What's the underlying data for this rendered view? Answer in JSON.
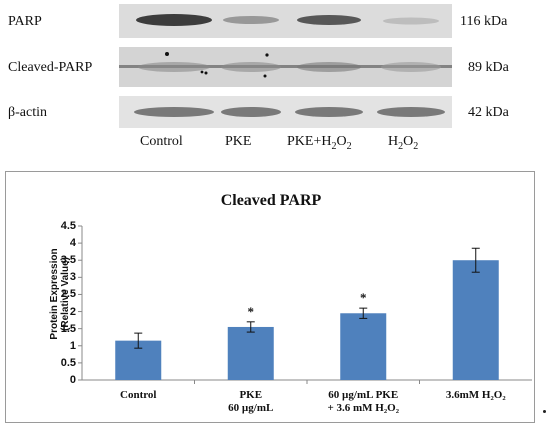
{
  "blot": {
    "rows": [
      {
        "label": "PARP",
        "kda": "116 kDa"
      },
      {
        "label": "Cleaved-PARP",
        "kda": "89 kDa"
      },
      {
        "label": "β-actin",
        "kda": "42 kDa"
      }
    ],
    "lanes": [
      {
        "text": "Control",
        "sub": ""
      },
      {
        "text": "PKE",
        "sub": ""
      },
      {
        "text": "PKE+H",
        "sub": "2",
        "tail": "O",
        "sub2": "2"
      },
      {
        "text": "H",
        "sub": "2",
        "tail": "O",
        "sub2": "2"
      }
    ]
  },
  "chart_data": {
    "type": "bar",
    "title": "Cleaved PARP",
    "ylabel_line1": "Protein Expression",
    "ylabel_line2": "(Relative Value)",
    "ylim": [
      0,
      4.5
    ],
    "yticks": [
      "0",
      "0.5",
      "1",
      "1.5",
      "2",
      "2.5",
      "3",
      "3.5",
      "4",
      "4.5"
    ],
    "categories": [
      {
        "line1": "Control",
        "line2": ""
      },
      {
        "line1": "PKE",
        "line2": "60 µg/mL"
      },
      {
        "line1": "60 µg/mL PKE",
        "line2": "+ 3.6 mM H₂O₂"
      },
      {
        "line1": "3.6mM H₂O₂",
        "line2": ""
      }
    ],
    "values": [
      1.15,
      1.55,
      1.95,
      3.5
    ],
    "errors": [
      0.22,
      0.15,
      0.15,
      0.35
    ],
    "significance": [
      "",
      "*",
      "*",
      ""
    ],
    "grid": false,
    "bar_color": "#4f81bd"
  }
}
